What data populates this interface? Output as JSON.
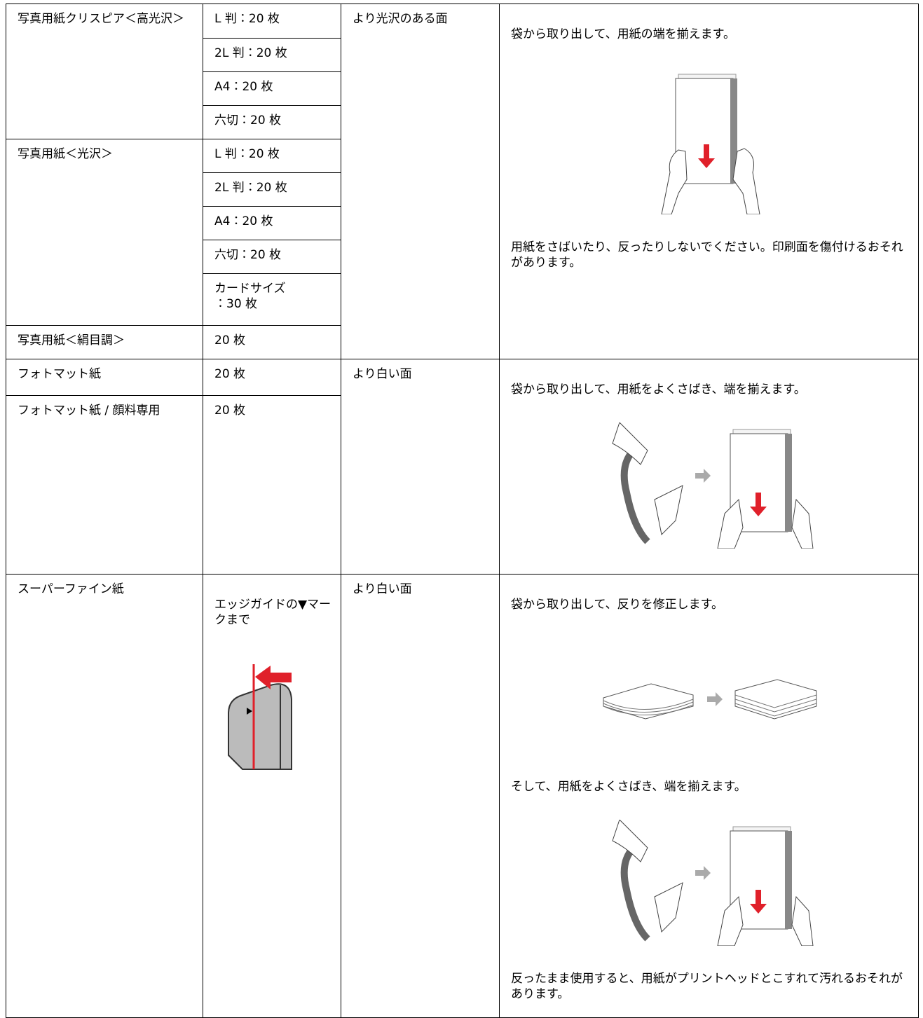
{
  "groups": [
    {
      "papers": [
        {
          "name": "写真用紙クリスピア＜高光沢＞",
          "capacities": [
            "L 判：20 枚",
            "2L 判：20 枚",
            "A4：20 枚",
            "六切：20 枚"
          ]
        },
        {
          "name": "写真用紙＜光沢＞",
          "capacities": [
            "L 判：20 枚",
            "2L 判：20 枚",
            "A4：20 枚",
            "六切：20 枚",
            "カードサイズ\n：30 枚"
          ]
        },
        {
          "name": "写真用紙＜絹目調＞",
          "capacities": [
            "20 枚"
          ]
        }
      ],
      "side": "より光沢のある面",
      "notes": [
        "袋から取り出して、用紙の端を揃えます。",
        "用紙をさばいたり、反ったりしないでください。印刷面を傷付けるおそれがあります。"
      ]
    },
    {
      "papers": [
        {
          "name": "フォトマット紙",
          "capacities": [
            "20 枚"
          ]
        },
        {
          "name": "フォトマット紙 / 顔料専用",
          "capacities": [
            "20 枚"
          ]
        }
      ],
      "side": "より白い面",
      "notes": [
        "袋から取り出して、用紙をよくさばき、端を揃えます。"
      ]
    },
    {
      "papers": [
        {
          "name": "スーパーファイン紙",
          "capacities": [
            "エッジガイドの▼マークまで"
          ]
        }
      ],
      "side": "より白い面",
      "notes": [
        "袋から取り出して、反りを修正します。",
        "そして、用紙をよくさばき、端を揃えます。",
        "反ったまま使用すると、用紙がプリントヘッドとこすれて汚れるおそれがあります。"
      ]
    }
  ]
}
